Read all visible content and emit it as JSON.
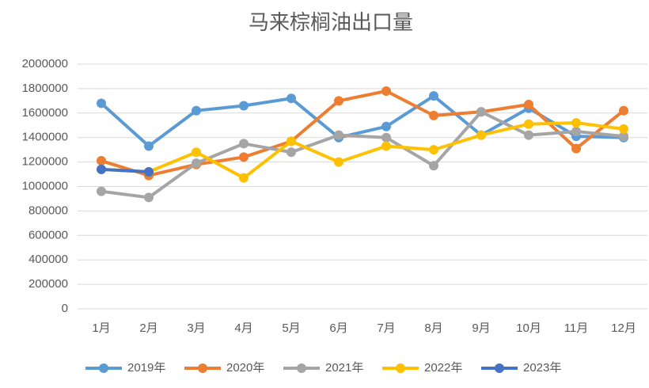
{
  "chart_data": {
    "type": "line",
    "title": "马来棕榈油出口量",
    "categories": [
      "1月",
      "2月",
      "3月",
      "4月",
      "5月",
      "6月",
      "7月",
      "8月",
      "9月",
      "10月",
      "11月",
      "12月"
    ],
    "series": [
      {
        "name": "2019年",
        "color": "#5B9BD5",
        "values": [
          1680000,
          1330000,
          1620000,
          1660000,
          1720000,
          1400000,
          1490000,
          1740000,
          1420000,
          1640000,
          1410000,
          1400000
        ]
      },
      {
        "name": "2020年",
        "color": "#ED7D31",
        "values": [
          1210000,
          1090000,
          1180000,
          1240000,
          1370000,
          1700000,
          1780000,
          1580000,
          1610000,
          1670000,
          1310000,
          1620000
        ]
      },
      {
        "name": "2021年",
        "color": "#A5A5A5",
        "values": [
          960000,
          910000,
          1190000,
          1350000,
          1280000,
          1420000,
          1400000,
          1170000,
          1610000,
          1420000,
          1450000,
          1410000
        ]
      },
      {
        "name": "2022年",
        "color": "#FFC000",
        "values": [
          1140000,
          1120000,
          1280000,
          1070000,
          1370000,
          1200000,
          1330000,
          1300000,
          1420000,
          1510000,
          1520000,
          1470000
        ]
      },
      {
        "name": "2023年",
        "color": "#4472C4",
        "values": [
          1140000,
          1120000,
          null,
          null,
          null,
          null,
          null,
          null,
          null,
          null,
          null,
          null
        ]
      }
    ],
    "ylim": [
      0,
      2000000
    ],
    "yticks": [
      0,
      200000,
      400000,
      600000,
      800000,
      1000000,
      1200000,
      1400000,
      1600000,
      1800000,
      2000000
    ],
    "grid": true,
    "legend": "bottom"
  }
}
